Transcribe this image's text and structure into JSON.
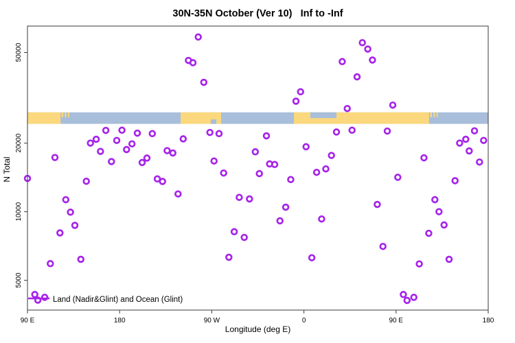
{
  "title": "30N-35N October (Ver 10)   Inf to -Inf",
  "legend": {
    "label": "Land (Nadir&Glint) and Ocean (Glint)"
  },
  "colors": {
    "marker": "#A624EA",
    "land": "#FBD87D",
    "ocean": "#A8BEDA",
    "axis": "#3a3a3a",
    "text": "#000000"
  },
  "chart_data": {
    "type": "scatter",
    "title": "30N-35N October (Ver 10)   Inf to -Inf",
    "xlabel": "Longitude (deg E)",
    "ylabel": "N Total",
    "legend_entries": [
      "Land (Nadir&Glint) and Ocean (Glint)"
    ],
    "marker": "open-circle",
    "grid": false,
    "x_axis": {
      "range_deg": [
        90,
        540
      ],
      "ticks": [
        {
          "value": 90,
          "label": "90 E"
        },
        {
          "value": 180,
          "label": "180"
        },
        {
          "value": 270,
          "label": "90 W"
        },
        {
          "value": 360,
          "label": "0"
        },
        {
          "value": 450,
          "label": "90 E"
        },
        {
          "value": 540,
          "label": "180"
        }
      ]
    },
    "y_axis": {
      "scale": "log",
      "range": [
        3700,
        65300
      ],
      "ticks": [
        {
          "value": 5000,
          "label": "5000"
        },
        {
          "value": 10000,
          "label": "10000"
        },
        {
          "value": 20000,
          "label": "20000"
        },
        {
          "value": 50000,
          "label": "50000"
        }
      ]
    },
    "map_band": {
      "description": "world coastline strip for 30N-35N, ocean base with land segments",
      "n_range": [
        24300,
        27300
      ],
      "land_deg": [
        [
          90,
          122.3
        ],
        [
          239.6,
          279.1
        ],
        [
          350.2,
          482.2
        ]
      ],
      "islands_deg": [
        [
          123.3,
          125.0
        ],
        [
          126.5,
          128.0
        ],
        [
          129.5,
          130.8
        ],
        [
          483.3,
          485.0
        ],
        [
          486.5,
          488.0
        ],
        [
          489.5,
          490.8
        ]
      ],
      "sea_top_deg": [
        [
          366.3,
          391.8
        ]
      ],
      "sea_bottom_deg": [
        [
          269.1,
          274.5
        ]
      ]
    },
    "points": [
      [
        166.5,
        22750
      ],
      [
        182.3,
        22800
      ],
      [
        197.3,
        22130
      ],
      [
        157.1,
        20800
      ],
      [
        151.5,
        20000
      ],
      [
        177.2,
        20560
      ],
      [
        192.1,
        19860
      ],
      [
        186.8,
        18750
      ],
      [
        161.3,
        18400
      ],
      [
        116.8,
        17300
      ],
      [
        172.0,
        16600
      ],
      [
        202.0,
        16440
      ],
      [
        206.7,
        17200
      ],
      [
        256.8,
        58470
      ],
      [
        247.2,
        46130
      ],
      [
        251.6,
        45080
      ],
      [
        262.2,
        36990
      ],
      [
        211.9,
        22020
      ],
      [
        268.2,
        22280
      ],
      [
        277.1,
        22020
      ],
      [
        242.1,
        20890
      ],
      [
        323.4,
        21530
      ],
      [
        226.4,
        18540
      ],
      [
        232.0,
        18110
      ],
      [
        312.5,
        18320
      ],
      [
        272.2,
        16700
      ],
      [
        417.1,
        55210
      ],
      [
        422.4,
        51760
      ],
      [
        426.9,
        46340
      ],
      [
        397.4,
        45600
      ],
      [
        411.9,
        39080
      ],
      [
        356.7,
        33600
      ],
      [
        352.2,
        30560
      ],
      [
        402.3,
        28380
      ],
      [
        446.8,
        29380
      ],
      [
        391.8,
        22390
      ],
      [
        407.0,
        22800
      ],
      [
        441.4,
        22590
      ],
      [
        362.1,
        19280
      ],
      [
        386.9,
        17660
      ],
      [
        326.5,
        16220
      ],
      [
        331.4,
        16110
      ],
      [
        381.4,
        15420
      ],
      [
        372.4,
        14890
      ],
      [
        526.6,
        22650
      ],
      [
        518.1,
        20800
      ],
      [
        512.1,
        20000
      ],
      [
        535.5,
        20560
      ],
      [
        521.4,
        18490
      ],
      [
        477.2,
        17230
      ],
      [
        531.5,
        16520
      ],
      [
        90.0,
        14000
      ],
      [
        147.5,
        13610
      ],
      [
        127.4,
        11290
      ],
      [
        132.0,
        9950
      ],
      [
        136.3,
        8710
      ],
      [
        121.7,
        8070
      ],
      [
        142.1,
        6180
      ],
      [
        112.3,
        5915
      ],
      [
        97.2,
        4330
      ],
      [
        106.8,
        4210
      ],
      [
        100.1,
        4090
      ],
      [
        216.8,
        13930
      ],
      [
        221.9,
        13580
      ],
      [
        237.1,
        11970
      ],
      [
        281.6,
        14790
      ],
      [
        316.5,
        14690
      ],
      [
        296.8,
        11560
      ],
      [
        306.8,
        11380
      ],
      [
        291.9,
        8170
      ],
      [
        301.7,
        7710
      ],
      [
        286.7,
        6310
      ],
      [
        347.1,
        13840
      ],
      [
        342.2,
        10470
      ],
      [
        336.6,
        9120
      ],
      [
        377.3,
        9290
      ],
      [
        431.6,
        10760
      ],
      [
        437.2,
        7040
      ],
      [
        367.7,
        6280
      ],
      [
        451.7,
        14160
      ],
      [
        507.6,
        13680
      ],
      [
        487.9,
        11290
      ],
      [
        491.9,
        10000
      ],
      [
        496.9,
        8750
      ],
      [
        481.9,
        8040
      ],
      [
        501.8,
        6180
      ],
      [
        472.7,
        5900
      ],
      [
        457.1,
        4330
      ],
      [
        460.7,
        4080
      ],
      [
        467.4,
        4210
      ]
    ]
  }
}
